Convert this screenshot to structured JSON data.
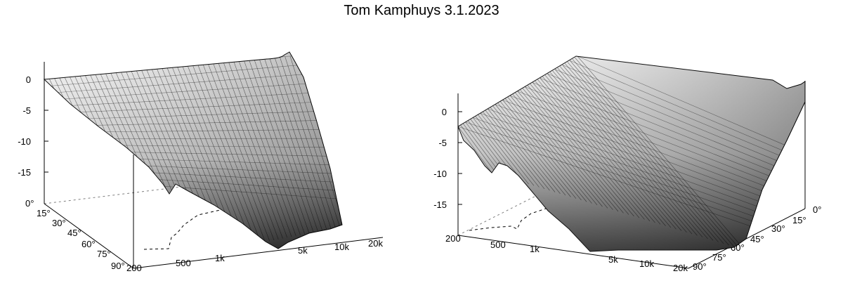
{
  "page": {
    "title": "Tom Kamphuys 3.1.2023"
  },
  "chart_data": [
    {
      "type": "surface",
      "view": "left",
      "zlim": [
        -20,
        3
      ],
      "z_ticks": [
        "0",
        "-5",
        "-10",
        "-15"
      ],
      "freq_ticks": [
        "200",
        "500",
        "1k",
        "5k",
        "10k",
        "20k"
      ],
      "angle_ticks": [
        "0°",
        "15°",
        "30°",
        "45°",
        "60°",
        "75°",
        "90°"
      ],
      "grid": false,
      "colormap": "grayscale",
      "contours_on_base": true
    },
    {
      "type": "surface",
      "view": "right",
      "zlim": [
        -20,
        3
      ],
      "z_ticks": [
        "0",
        "-5",
        "-10",
        "-15"
      ],
      "freq_ticks": [
        "200",
        "500",
        "1k",
        "5k",
        "10k",
        "20k"
      ],
      "angle_ticks": [
        "0°",
        "15°",
        "30°",
        "45°",
        "60°",
        "75°",
        "90°"
      ],
      "grid": false,
      "colormap": "grayscale",
      "contours_on_base": true
    }
  ]
}
